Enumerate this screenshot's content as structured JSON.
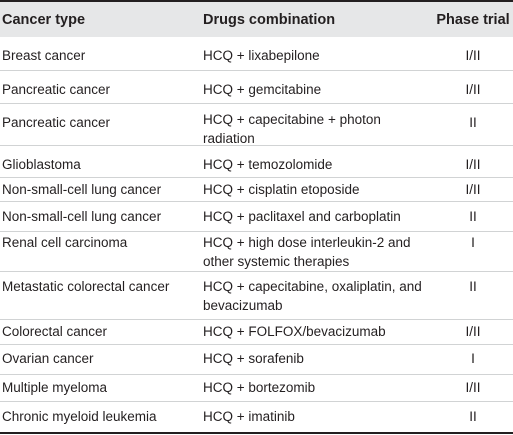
{
  "table": {
    "headers": [
      "Cancer type",
      "Drugs combination",
      "Phase trial"
    ],
    "rows": [
      {
        "cancer": "Breast cancer",
        "drugs": "HCQ + lixabepilone",
        "phase": "I/II"
      },
      {
        "cancer": "Pancreatic cancer",
        "drugs": "HCQ + gemcitabine",
        "phase": "I/II"
      },
      {
        "cancer": "Pancreatic cancer",
        "drugs": "HCQ + capecitabine + photon radiation",
        "phase": "II"
      },
      {
        "cancer": "Glioblastoma",
        "drugs": "HCQ + temozolomide",
        "phase": "I/II"
      },
      {
        "cancer": "Non-small-cell lung cancer",
        "drugs": "HCQ + cisplatin etoposide",
        "phase": "I/II"
      },
      {
        "cancer": "Non-small-cell lung cancer",
        "drugs": "HCQ + paclitaxel and carboplatin",
        "phase": "II"
      },
      {
        "cancer": "Renal cell carcinoma",
        "drugs": "HCQ + high dose interleukin-2 and other systemic therapies",
        "phase": "I"
      },
      {
        "cancer": "Metastatic colorectal cancer",
        "drugs": "HCQ + capecitabine, oxaliplatin, and bevacizumab",
        "phase": "II"
      },
      {
        "cancer": "Colorectal cancer",
        "drugs": "HCQ + FOLFOX/bevacizumab",
        "phase": "I/II"
      },
      {
        "cancer": "Ovarian cancer",
        "drugs": "HCQ + sorafenib",
        "phase": "I"
      },
      {
        "cancer": "Multiple myeloma",
        "drugs": "HCQ + bortezomib",
        "phase": "I/II"
      },
      {
        "cancer": "Chronic myeloid leukemia",
        "drugs": "HCQ + imatinib",
        "phase": "II"
      }
    ]
  }
}
